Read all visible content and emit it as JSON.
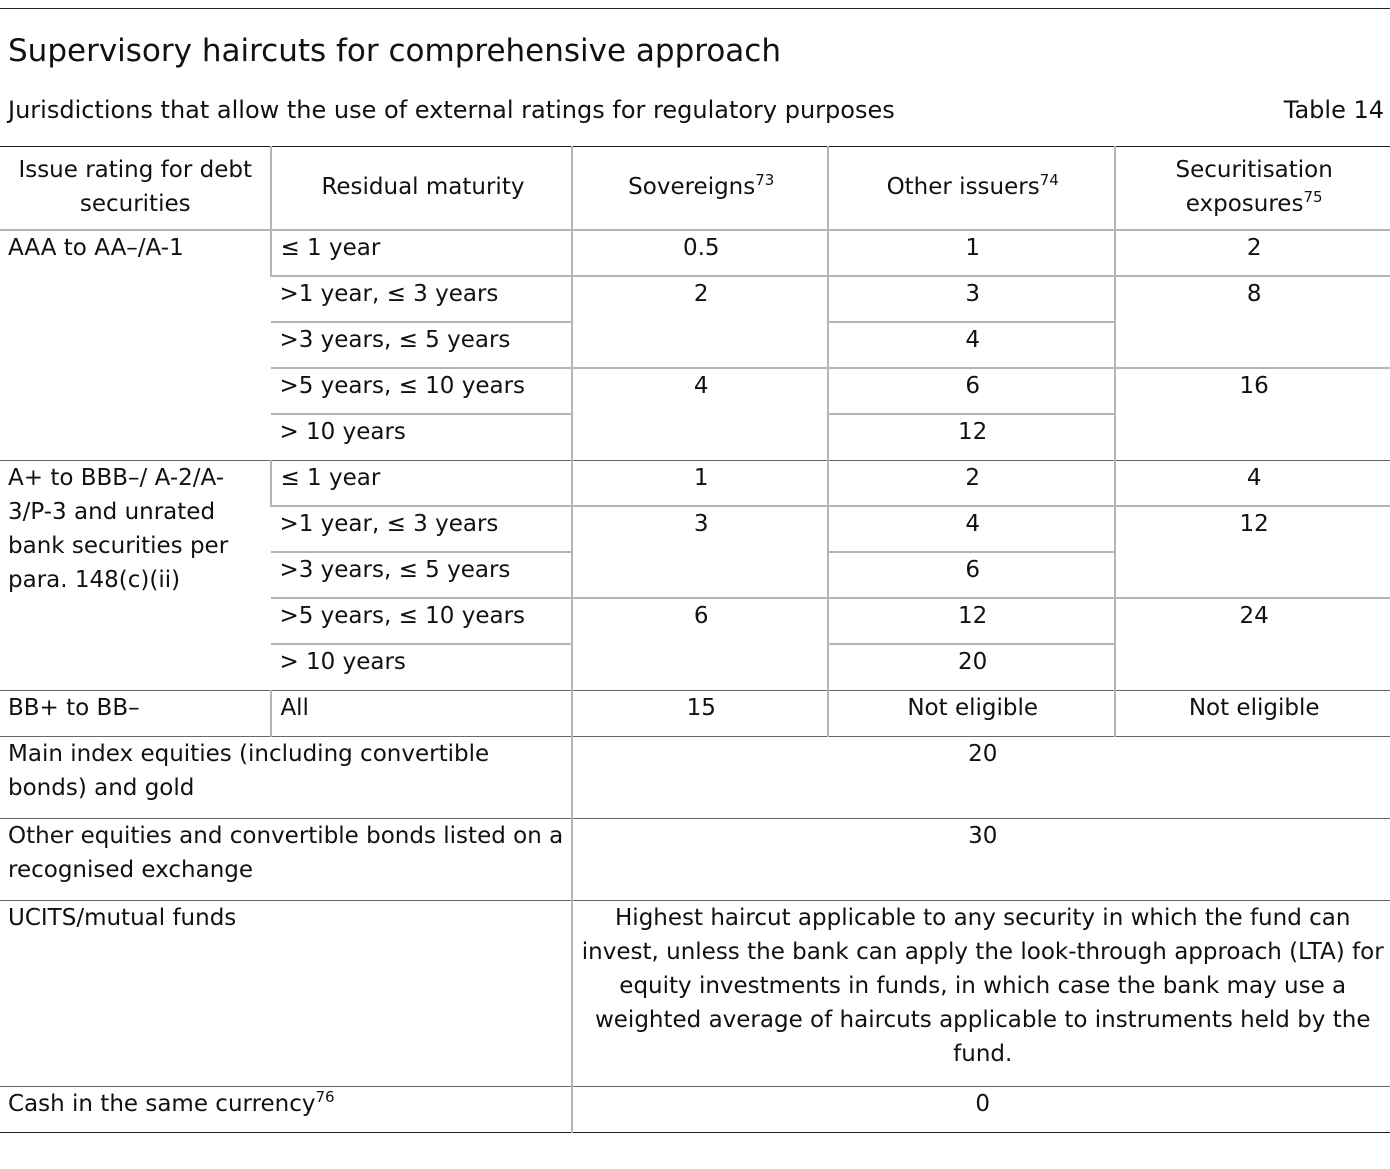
{
  "title": "Supervisory haircuts for comprehensive approach",
  "subtitle": "Jurisdictions that allow the use of external ratings for regulatory purposes",
  "table_label": "Table 14",
  "headers": {
    "rating": "Issue rating for debt securities",
    "maturity": "Residual maturity",
    "sovereigns": "Sovereigns",
    "sovereigns_note": "73",
    "other": "Other issuers",
    "other_note": "74",
    "securitisation": "Securitisation exposures",
    "securitisation_note": "75"
  },
  "group_aaa": {
    "rating": "AAA to AA–/A-1",
    "rows": [
      {
        "maturity": "≤ 1 year",
        "sovereigns": "0.5",
        "other": "1",
        "securitisation": "2"
      },
      {
        "maturity": ">1 year, ≤ 3 years",
        "sovereigns": "2",
        "other": "3",
        "securitisation": "8"
      },
      {
        "maturity": ">3 years, ≤ 5 years",
        "other": "4"
      },
      {
        "maturity": ">5 years, ≤ 10 years",
        "sovereigns": "4",
        "other": "6",
        "securitisation": "16"
      },
      {
        "maturity": "> 10 years",
        "other": "12"
      }
    ]
  },
  "group_a": {
    "rating": "A+ to BBB–/ A-2/A-3/P-3 and unrated bank securities per para. 148(c)(ii)",
    "rows": [
      {
        "maturity": "≤ 1 year",
        "sovereigns": "1",
        "other": "2",
        "securitisation": "4"
      },
      {
        "maturity": ">1 year, ≤ 3 years",
        "sovereigns": "3",
        "other": "4",
        "securitisation": "12"
      },
      {
        "maturity": ">3 years, ≤ 5 years",
        "other": "6"
      },
      {
        "maturity": ">5 years, ≤ 10 years",
        "sovereigns": "6",
        "other": "12",
        "securitisation": "24"
      },
      {
        "maturity": "> 10 years",
        "other": "20"
      }
    ]
  },
  "group_bb": {
    "rating": "BB+ to BB–",
    "maturity": "All",
    "sovereigns": "15",
    "other": "Not eligible",
    "securitisation": "Not eligible"
  },
  "main_index": {
    "label": "Main index equities (including convertible bonds) and gold",
    "value": "20"
  },
  "other_equities": {
    "label": "Other equities and convertible bonds listed on a recognised exchange",
    "value": "30"
  },
  "ucits": {
    "label": "UCITS/mutual funds",
    "value": "Highest haircut applicable to any security in which the fund can invest, unless the bank can apply the look-through approach (LTA) for equity investments in funds, in which case the bank may use a weighted average of haircuts applicable to instruments held by the fund."
  },
  "cash": {
    "label": "Cash in the same currency",
    "note": "76",
    "value": "0"
  }
}
